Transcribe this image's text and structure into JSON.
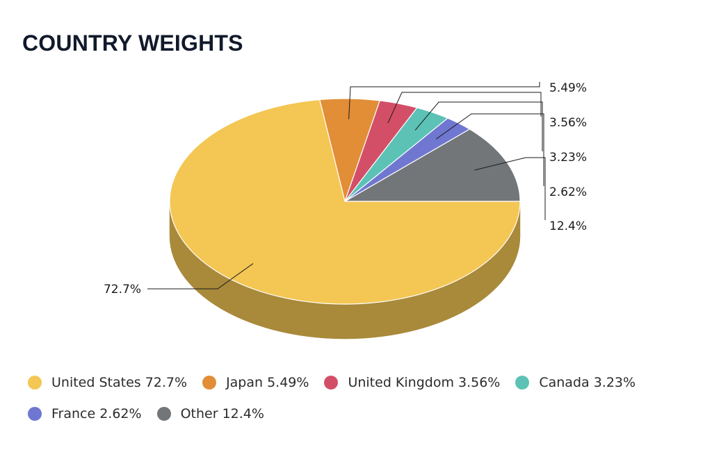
{
  "title": "COUNTRY WEIGHTS",
  "chart_data": {
    "type": "pie",
    "style": "3d",
    "slices": [
      {
        "name": "United States",
        "value": 72.7,
        "label": "72.7%",
        "legend": "United States 72.7%",
        "color": "#f4c653",
        "side_color": "#a9893a"
      },
      {
        "name": "Japan",
        "value": 5.49,
        "label": "5.49%",
        "legend": "Japan 5.49%",
        "color": "#e28e36",
        "side_color": "#9d6326"
      },
      {
        "name": "United Kingdom",
        "value": 3.56,
        "label": "3.56%",
        "legend": "United Kingdom 3.56%",
        "color": "#d34f68",
        "side_color": "#933748"
      },
      {
        "name": "Canada",
        "value": 3.23,
        "label": "3.23%",
        "legend": "Canada 3.23%",
        "color": "#5cc2b5",
        "side_color": "#40877e"
      },
      {
        "name": "France",
        "value": 2.62,
        "label": "2.62%",
        "legend": "France 2.62%",
        "color": "#7077d1",
        "side_color": "#4e5391"
      },
      {
        "name": "Other",
        "value": 12.4,
        "label": "12.4%",
        "legend": "Other 12.4%",
        "color": "#737679",
        "side_color": "#505254"
      }
    ],
    "legend_position": "bottom"
  }
}
